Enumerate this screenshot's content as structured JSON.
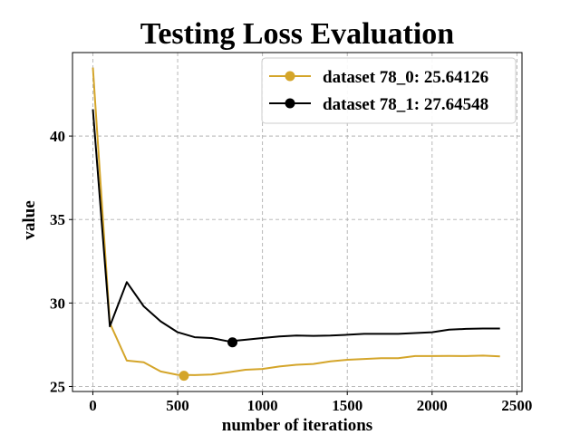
{
  "chart_data": {
    "type": "line",
    "title": "Testing Loss Evaluation",
    "xlabel": "number of iterations",
    "ylabel": "value",
    "xlim": [
      -120,
      2530
    ],
    "ylim": [
      24.7,
      45
    ],
    "xticks": [
      0,
      500,
      1000,
      1500,
      2000,
      2500
    ],
    "yticks": [
      25,
      30,
      35,
      40
    ],
    "grid": true,
    "legend_position": "top-right",
    "series": [
      {
        "name": "dataset 78_0: 25.64126",
        "color": "#d4a52a",
        "x": [
          0,
          100,
          200,
          300,
          400,
          500,
          600,
          700,
          800,
          900,
          1000,
          1100,
          1200,
          1300,
          1400,
          1500,
          1600,
          1700,
          1800,
          1900,
          2000,
          2100,
          2200,
          2300,
          2400
        ],
        "y": [
          44.1,
          28.8,
          26.55,
          26.45,
          25.9,
          25.7,
          25.68,
          25.72,
          25.85,
          26.0,
          26.05,
          26.2,
          26.3,
          26.35,
          26.5,
          26.6,
          26.65,
          26.7,
          26.7,
          26.82,
          26.82,
          26.83,
          26.82,
          26.85,
          26.8
        ],
        "marker": {
          "x": 537,
          "y": 25.64126
        }
      },
      {
        "name": "dataset 78_1: 27.64548",
        "color": "#000000",
        "x": [
          0,
          100,
          200,
          300,
          400,
          500,
          600,
          700,
          800,
          900,
          1000,
          1100,
          1200,
          1300,
          1400,
          1500,
          1600,
          1700,
          1800,
          1900,
          2000,
          2100,
          2200,
          2300,
          2400
        ],
        "y": [
          41.6,
          28.6,
          31.25,
          29.8,
          28.9,
          28.25,
          27.95,
          27.9,
          27.7,
          27.8,
          27.9,
          28.0,
          28.05,
          28.03,
          28.05,
          28.1,
          28.15,
          28.15,
          28.15,
          28.2,
          28.25,
          28.4,
          28.45,
          28.47,
          28.47
        ],
        "marker": {
          "x": 823,
          "y": 27.64548
        }
      }
    ]
  }
}
